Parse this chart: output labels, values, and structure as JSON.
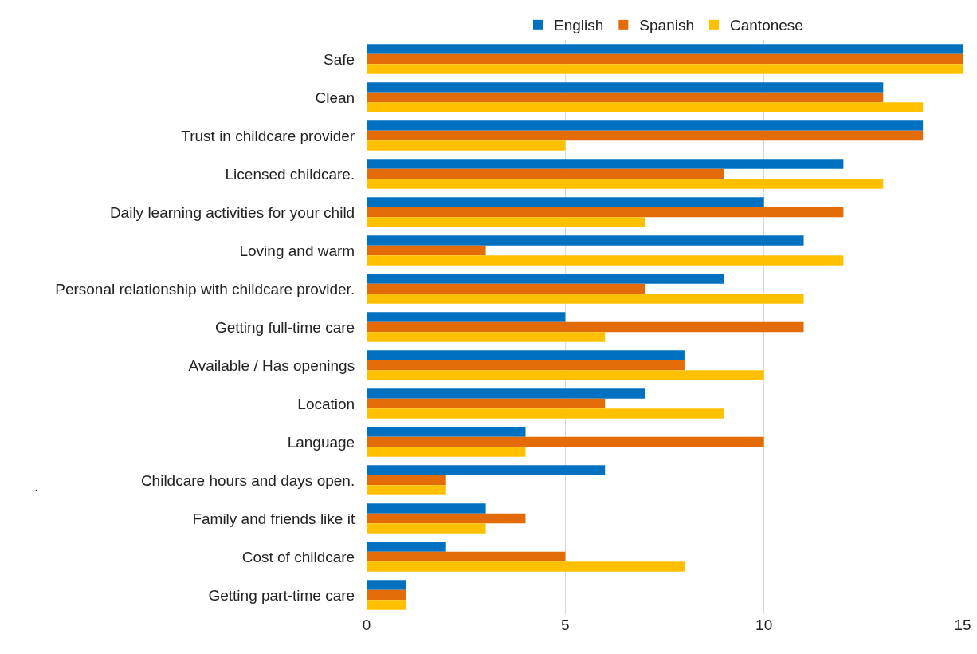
{
  "chart_data": {
    "type": "bar",
    "orientation": "horizontal",
    "categories": [
      "Safe",
      "Clean",
      "Trust in childcare provider",
      "Licensed childcare.",
      "Daily learning activities for your child",
      "Loving and warm",
      "Personal relationship with childcare provider.",
      "Getting full-time care",
      "Available / Has openings",
      "Location",
      "Language",
      "Childcare hours and days open.",
      "Family and friends like it",
      "Cost of childcare",
      "Getting part-time care"
    ],
    "series": [
      {
        "name": "English",
        "color": "#0070c0",
        "values": [
          15,
          13,
          14,
          12,
          10,
          11,
          9,
          5,
          8,
          7,
          4,
          6,
          3,
          2,
          1
        ]
      },
      {
        "name": "Spanish",
        "color": "#e36c09",
        "values": [
          15,
          13,
          14,
          9,
          12,
          3,
          7,
          11,
          8,
          6,
          10,
          2,
          4,
          5,
          1
        ]
      },
      {
        "name": "Cantonese",
        "color": "#ffc000",
        "values": [
          15,
          14,
          5,
          13,
          7,
          12,
          11,
          6,
          10,
          9,
          4,
          2,
          3,
          8,
          1
        ]
      }
    ],
    "xlim": [
      0,
      15
    ],
    "xticks": [
      0,
      5,
      10,
      15
    ],
    "grid": "x",
    "legend": "top",
    "annotations": [
      "."
    ]
  }
}
